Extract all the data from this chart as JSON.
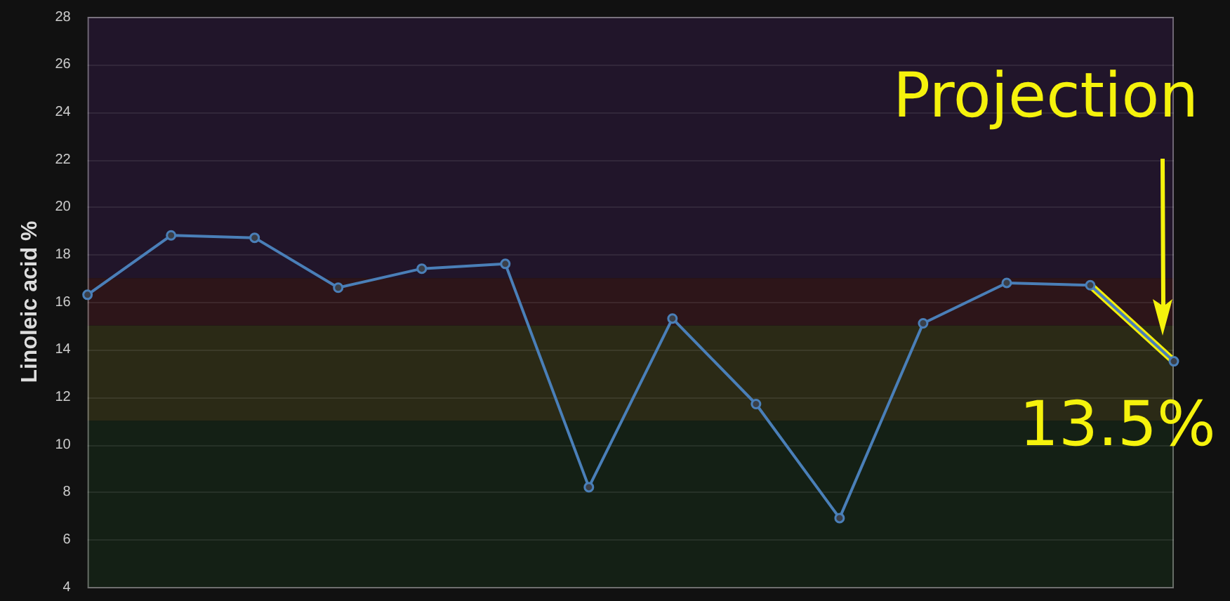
{
  "chart_data": {
    "type": "line",
    "ylabel": "Linoleic acid %",
    "categories": [
      null,
      null,
      null,
      null,
      null,
      null,
      null,
      null,
      null,
      null,
      null,
      null,
      null,
      null
    ],
    "ylim": [
      4,
      28
    ],
    "yticks": [
      4,
      6,
      8,
      10,
      12,
      14,
      16,
      18,
      20,
      22,
      24,
      26,
      28
    ],
    "tick_labels": "y",
    "grid": "y",
    "legend": false,
    "marker": "circle",
    "series": [
      {
        "color": "#4a7fb8",
        "values": [
          16.3,
          18.8,
          18.7,
          16.6,
          17.4,
          17.6,
          8.2,
          15.3,
          11.7,
          6.9,
          15.1,
          16.8,
          16.7,
          13.5
        ]
      },
      {
        "color": "#f2ee0a",
        "marker": "none",
        "values": [
          null,
          null,
          null,
          null,
          null,
          null,
          null,
          null,
          null,
          null,
          null,
          null,
          16.7,
          13.5
        ]
      }
    ],
    "bands": [
      {
        "axis": "y",
        "from": 17,
        "to": 28,
        "color": "#21152a"
      },
      {
        "axis": "y",
        "from": 15,
        "to": 17,
        "color": "#2d1519"
      },
      {
        "axis": "y",
        "from": 11,
        "to": 15,
        "color": "#2b2a16"
      },
      {
        "axis": "y",
        "from": 4,
        "to": 11,
        "color": "#142015"
      }
    ],
    "annotations": [
      "Projection",
      "13.5%"
    ]
  }
}
